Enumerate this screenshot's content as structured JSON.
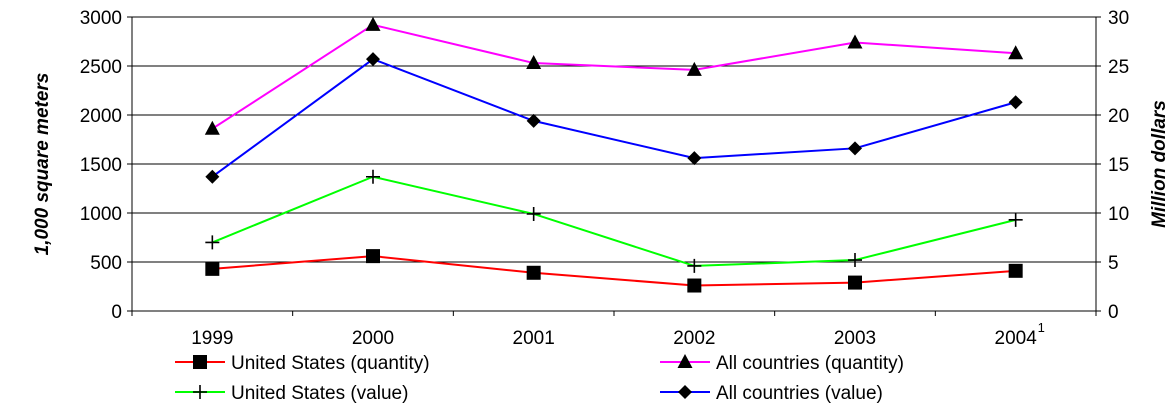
{
  "chart_data": {
    "type": "line",
    "title": "",
    "x": [
      "1999",
      "2000",
      "2001",
      "2002",
      "2003",
      "2004"
    ],
    "x_footnote": {
      "category": "2004",
      "mark": "1"
    },
    "ylabel_left": "1,000 square meters",
    "ylabel_right": "Million dollars",
    "ylim_left": [
      0,
      3000
    ],
    "ylim_right": [
      0,
      30
    ],
    "yticks_left": [
      0,
      500,
      1000,
      1500,
      2000,
      2500,
      3000
    ],
    "yticks_right": [
      0,
      5,
      10,
      15,
      20,
      25,
      30
    ],
    "grid": "horizontal",
    "legend_position": "bottom",
    "series": [
      {
        "name": "United States (quantity)",
        "axis": "left",
        "color": "#ff0000",
        "marker": "square",
        "values": [
          430,
          560,
          390,
          260,
          290,
          410
        ]
      },
      {
        "name": "All countries (quantity)",
        "axis": "left",
        "color": "#ff00ff",
        "marker": "triangle",
        "values": [
          1860,
          2920,
          2530,
          2460,
          2740,
          2630
        ]
      },
      {
        "name": "United States (value)",
        "axis": "right",
        "color": "#00ff00",
        "marker": "plus",
        "values": [
          7.0,
          13.7,
          9.9,
          4.6,
          5.2,
          9.3
        ]
      },
      {
        "name": "All countries (value)",
        "axis": "right",
        "color": "#0000ff",
        "marker": "diamond",
        "values": [
          13.7,
          25.7,
          19.4,
          15.6,
          16.6,
          21.3
        ]
      }
    ],
    "legend_order": [
      0,
      1,
      2,
      3
    ]
  }
}
